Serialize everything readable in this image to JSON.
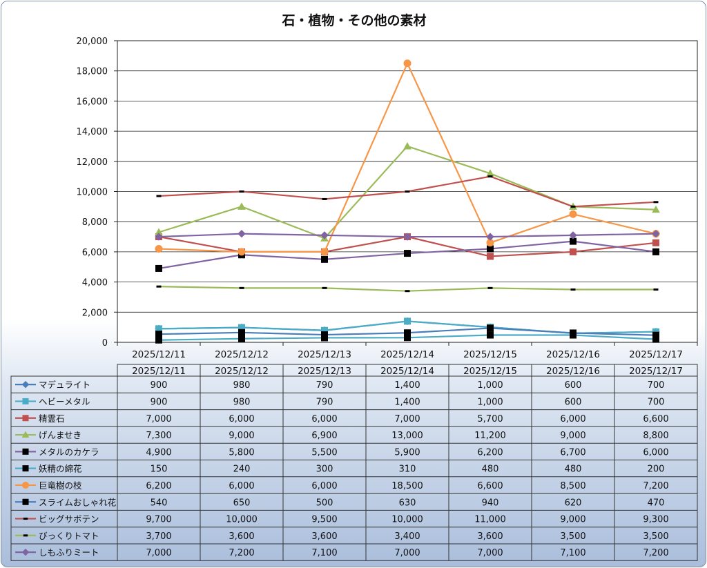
{
  "chart_data": {
    "type": "line",
    "title": "石・植物・その他の素材",
    "xlabel": "",
    "ylabel": "",
    "ylim": [
      0,
      20000
    ],
    "yticks": [
      "0",
      "2,000",
      "4,000",
      "6,000",
      "8,000",
      "10,000",
      "12,000",
      "14,000",
      "16,000",
      "18,000",
      "20,000"
    ],
    "grid": true,
    "legend": "data-table-below",
    "categories": [
      "2025/12/11",
      "2025/12/12",
      "2025/12/13",
      "2025/12/14",
      "2025/12/15",
      "2025/12/16",
      "2025/12/17"
    ],
    "series": [
      {
        "name": "マデュライト",
        "color": "#4a7ebb",
        "marker": "diamond",
        "values": [
          900,
          980,
          790,
          1400,
          1000,
          600,
          700
        ],
        "labels": [
          "900",
          "980",
          "790",
          "1,400",
          "1,000",
          "600",
          "700"
        ]
      },
      {
        "name": "ヘビーメタル",
        "color": "#4bacc6",
        "marker": "square",
        "values": [
          900,
          980,
          790,
          1400,
          1000,
          600,
          700
        ],
        "labels": [
          "900",
          "980",
          "790",
          "1,400",
          "1,000",
          "600",
          "700"
        ]
      },
      {
        "name": "精霊石",
        "color": "#c0504d",
        "marker": "square",
        "values": [
          7000,
          6000,
          6000,
          7000,
          5700,
          6000,
          6600
        ],
        "labels": [
          "7,000",
          "6,000",
          "6,000",
          "7,000",
          "5,700",
          "6,000",
          "6,600"
        ]
      },
      {
        "name": "げんませき",
        "color": "#9bbb59",
        "marker": "triangle",
        "values": [
          7300,
          9000,
          6900,
          13000,
          11200,
          9000,
          8800
        ],
        "labels": [
          "7,300",
          "9,000",
          "6,900",
          "13,000",
          "11,200",
          "9,000",
          "8,800"
        ]
      },
      {
        "name": "メタルのカケラ",
        "color": "#8064a2",
        "marker": "blacksquare",
        "values": [
          4900,
          5800,
          5500,
          5900,
          6200,
          6700,
          6000
        ],
        "labels": [
          "4,900",
          "5,800",
          "5,500",
          "5,900",
          "6,200",
          "6,700",
          "6,000"
        ]
      },
      {
        "name": "妖精の綿花",
        "color": "#4bacc6",
        "marker": "blacksquare",
        "values": [
          150,
          240,
          300,
          310,
          480,
          480,
          200
        ],
        "labels": [
          "150",
          "240",
          "300",
          "310",
          "480",
          "480",
          "200"
        ]
      },
      {
        "name": "巨竜樹の枝",
        "color": "#f79646",
        "marker": "circle",
        "values": [
          6200,
          6000,
          6000,
          18500,
          6600,
          8500,
          7200
        ],
        "labels": [
          "6,200",
          "6,000",
          "6,000",
          "18,500",
          "6,600",
          "8,500",
          "7,200"
        ]
      },
      {
        "name": "スライムおしゃれ花",
        "color": "#4a7ebb",
        "marker": "blacksquare",
        "values": [
          540,
          650,
          500,
          630,
          940,
          620,
          470
        ],
        "labels": [
          "540",
          "650",
          "500",
          "630",
          "940",
          "620",
          "470"
        ]
      },
      {
        "name": "ビッグサボテン",
        "color": "#c0504d",
        "marker": "dash",
        "values": [
          9700,
          10000,
          9500,
          10000,
          11000,
          9000,
          9300
        ],
        "labels": [
          "9,700",
          "10,000",
          "9,500",
          "10,000",
          "11,000",
          "9,000",
          "9,300"
        ]
      },
      {
        "name": "びっくりトマト",
        "color": "#9bbb59",
        "marker": "dash",
        "values": [
          3700,
          3600,
          3600,
          3400,
          3600,
          3500,
          3500
        ],
        "labels": [
          "3,700",
          "3,600",
          "3,600",
          "3,400",
          "3,600",
          "3,500",
          "3,500"
        ]
      },
      {
        "name": "しもふりミート",
        "color": "#8064a2",
        "marker": "diamond",
        "values": [
          7000,
          7200,
          7100,
          7000,
          7000,
          7100,
          7200
        ],
        "labels": [
          "7,000",
          "7,200",
          "7,100",
          "7,000",
          "7,000",
          "7,100",
          "7,200"
        ]
      }
    ]
  }
}
